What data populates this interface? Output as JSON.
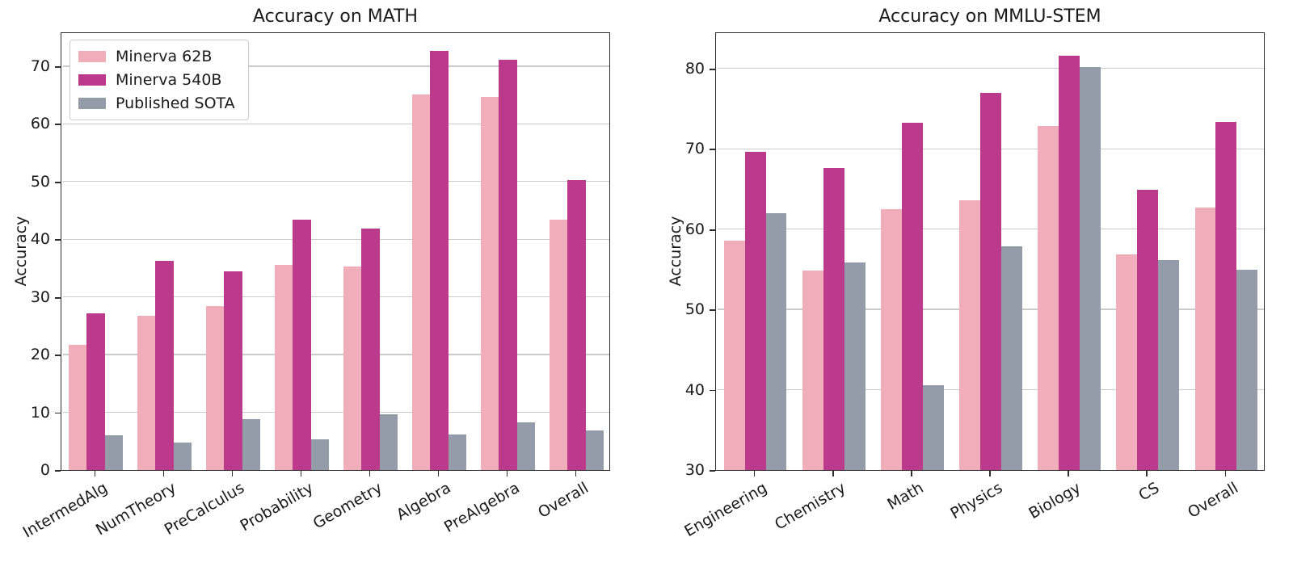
{
  "figure": {
    "background": "#ffffff",
    "text_color": "#1a1a1a",
    "grid_color": "#cbcbcb",
    "spine_color": "#2e2e2e",
    "legend": {
      "position": "upper-left-of-first-chart",
      "items": [
        {
          "label": "Minerva 62B",
          "color": "#f0aeba"
        },
        {
          "label": "Minerva 540B",
          "color": "#bb3a8c"
        },
        {
          "label": "Published SOTA",
          "color": "#949ba9"
        }
      ]
    }
  },
  "chart_data": [
    {
      "type": "bar",
      "title": "Accuracy on MATH",
      "xlabel": "",
      "ylabel": "Accuracy",
      "grid": true,
      "legend_position": "upper left",
      "ylim": [
        0,
        76
      ],
      "yticks": [
        0,
        10,
        20,
        30,
        40,
        50,
        60,
        70
      ],
      "categories": [
        "IntermedAlg",
        "NumTheory",
        "PreCalculus",
        "Probability",
        "Geometry",
        "Algebra",
        "PreAlgebra",
        "Overall"
      ],
      "series": [
        {
          "name": "Minerva 62B",
          "color": "#f0aeba",
          "values": [
            21.7,
            26.7,
            28.4,
            35.5,
            35.3,
            65.1,
            64.7,
            43.4
          ]
        },
        {
          "name": "Minerva 540B",
          "color": "#bb3a8c",
          "values": [
            27.1,
            36.3,
            34.4,
            43.4,
            41.9,
            72.7,
            71.1,
            50.3
          ]
        },
        {
          "name": "Published SOTA",
          "color": "#949ba9",
          "values": [
            6.0,
            4.8,
            8.8,
            5.3,
            9.7,
            6.1,
            8.2,
            6.9
          ]
        }
      ]
    },
    {
      "type": "bar",
      "title": "Accuracy on MMLU-STEM",
      "xlabel": "",
      "ylabel": "Accuracy",
      "grid": true,
      "legend_position": "none",
      "ylim": [
        30,
        84.6
      ],
      "yticks": [
        30,
        40,
        50,
        60,
        70,
        80
      ],
      "categories": [
        "Engineering",
        "Chemistry",
        "Math",
        "Physics",
        "Biology",
        "CS",
        "Overall"
      ],
      "series": [
        {
          "name": "Minerva 62B",
          "color": "#f0aeba",
          "values": [
            58.6,
            54.8,
            62.5,
            63.6,
            72.8,
            56.8,
            62.7
          ]
        },
        {
          "name": "Minerva 540B",
          "color": "#bb3a8c",
          "values": [
            69.6,
            67.6,
            73.2,
            77.0,
            81.6,
            64.9,
            73.3
          ]
        },
        {
          "name": "Published SOTA",
          "color": "#949ba9",
          "values": [
            62.0,
            55.8,
            40.6,
            57.9,
            80.2,
            56.1,
            54.9
          ]
        }
      ]
    }
  ]
}
